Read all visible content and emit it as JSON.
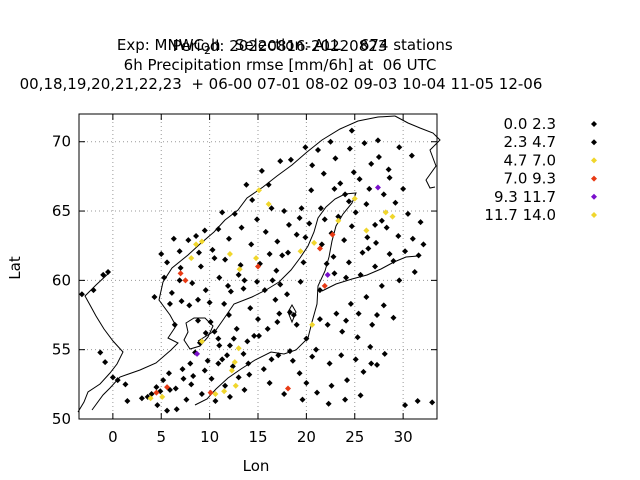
{
  "title_lines": [
    "Exp: MNWC",
    "2",
    "h   Selection: ALL    674 stations",
    "Period: 20220816-20220823",
    "6h Precipitation rmse [mm/6h] at  06 UTC",
    "00,18,19,20,21,22,23  + 06-00 07-01 08-02 09-03 10-04 11-05 12-06"
  ],
  "chart_data": {
    "type": "scatter",
    "xlabel": "Lon",
    "ylabel": "Lat",
    "xlim": [
      -3.5,
      33.5
    ],
    "ylim": [
      50,
      72
    ],
    "xticks": [
      0,
      5,
      10,
      15,
      20,
      25,
      30
    ],
    "yticks": [
      50,
      55,
      60,
      65,
      70
    ],
    "grid": true,
    "legend_position": "right",
    "series": [
      {
        "name": "0.0 2.3",
        "color": "#000000",
        "points": [
          [
            -3.2,
            59.0
          ],
          [
            -2.0,
            59.3
          ],
          [
            -1.0,
            60.4
          ],
          [
            -0.5,
            60.6
          ],
          [
            -1.3,
            54.8
          ],
          [
            -0.8,
            54.1
          ],
          [
            0.0,
            53.0
          ],
          [
            0.5,
            52.8
          ],
          [
            1.3,
            52.5
          ],
          [
            1.5,
            51.3
          ],
          [
            3.0,
            51.5
          ],
          [
            4.0,
            51.8
          ],
          [
            4.5,
            52.3
          ],
          [
            5.2,
            52.8
          ],
          [
            5.8,
            53.3
          ],
          [
            6.5,
            52.2
          ],
          [
            7.2,
            53.6
          ],
          [
            8.0,
            54.0
          ],
          [
            8.5,
            54.8
          ],
          [
            9.0,
            55.5
          ],
          [
            9.6,
            56.2
          ],
          [
            10.1,
            57.0
          ],
          [
            10.5,
            56.3
          ],
          [
            11.0,
            55.3
          ],
          [
            11.8,
            54.6
          ],
          [
            12.5,
            55.8
          ],
          [
            12.0,
            57.5
          ],
          [
            11.5,
            58.3
          ],
          [
            12.2,
            59.2
          ],
          [
            13.5,
            59.4
          ],
          [
            14.2,
            58.0
          ],
          [
            15.0,
            57.2
          ],
          [
            16.0,
            56.5
          ],
          [
            17.2,
            57.6
          ],
          [
            18.0,
            59.0
          ],
          [
            16.5,
            60.0
          ],
          [
            15.2,
            61.2
          ],
          [
            14.3,
            62.6
          ],
          [
            15.8,
            63.5
          ],
          [
            17.0,
            62.8
          ],
          [
            18.2,
            64.0
          ],
          [
            19.5,
            65.2
          ],
          [
            20.5,
            66.5
          ],
          [
            21.8,
            67.7
          ],
          [
            23.0,
            68.8
          ],
          [
            24.5,
            69.5
          ],
          [
            26.0,
            69.9
          ],
          [
            27.5,
            68.9
          ],
          [
            28.5,
            68.0
          ],
          [
            25.5,
            67.3
          ],
          [
            24.0,
            66.2
          ],
          [
            26.2,
            65.5
          ],
          [
            27.8,
            64.3
          ],
          [
            29.5,
            63.2
          ],
          [
            28.6,
            61.9
          ],
          [
            27.1,
            61.0
          ],
          [
            25.6,
            60.4
          ],
          [
            24.1,
            60.2
          ],
          [
            22.9,
            60.5
          ],
          [
            22.1,
            61.2
          ],
          [
            21.6,
            62.6
          ],
          [
            22.6,
            63.4
          ],
          [
            23.3,
            64.6
          ],
          [
            25.1,
            64.9
          ],
          [
            26.3,
            63.1
          ],
          [
            27.2,
            62.7
          ],
          [
            29.0,
            61.4
          ],
          [
            30.2,
            62.1
          ],
          [
            31.0,
            63.0
          ],
          [
            30.5,
            64.8
          ],
          [
            29.2,
            65.6
          ],
          [
            28.0,
            66.2
          ],
          [
            26.5,
            66.6
          ],
          [
            24.9,
            67.8
          ],
          [
            23.5,
            67.0
          ],
          [
            21.5,
            65.2
          ],
          [
            20.3,
            64.1
          ],
          [
            19.0,
            63.3
          ],
          [
            17.5,
            61.8
          ],
          [
            16.2,
            61.9
          ],
          [
            13.2,
            61.1
          ],
          [
            11.6,
            61.5
          ],
          [
            10.3,
            62.2
          ],
          [
            9.1,
            61.0
          ],
          [
            8.2,
            59.8
          ],
          [
            7.1,
            58.5
          ],
          [
            6.1,
            59.1
          ],
          [
            5.3,
            60.2
          ],
          [
            5.6,
            61.3
          ],
          [
            6.9,
            62.1
          ],
          [
            8.6,
            63.2
          ],
          [
            10.9,
            63.7
          ],
          [
            12.6,
            64.8
          ],
          [
            14.4,
            65.8
          ],
          [
            16.1,
            66.9
          ],
          [
            18.4,
            68.7
          ],
          [
            19.9,
            69.6
          ],
          [
            21.2,
            69.4
          ],
          [
            22.5,
            70.0
          ],
          [
            24.7,
            70.8
          ],
          [
            27.4,
            70.1
          ],
          [
            29.6,
            69.6
          ],
          [
            30.9,
            69.0
          ],
          [
            31.6,
            61.8
          ],
          [
            32.1,
            62.6
          ],
          [
            31.2,
            60.6
          ],
          [
            29.6,
            60.0
          ],
          [
            27.8,
            59.6
          ],
          [
            26.2,
            58.8
          ],
          [
            24.6,
            58.3
          ],
          [
            23.1,
            57.6
          ],
          [
            22.2,
            56.8
          ],
          [
            23.7,
            56.3
          ],
          [
            25.3,
            55.9
          ],
          [
            26.6,
            55.2
          ],
          [
            28.1,
            54.7
          ],
          [
            27.3,
            53.9
          ],
          [
            25.9,
            53.4
          ],
          [
            24.2,
            52.8
          ],
          [
            22.6,
            52.4
          ],
          [
            21.1,
            51.9
          ],
          [
            20.0,
            52.6
          ],
          [
            19.3,
            53.3
          ],
          [
            18.6,
            54.2
          ],
          [
            17.1,
            54.6
          ],
          [
            15.6,
            53.6
          ],
          [
            14.1,
            53.2
          ],
          [
            13.6,
            52.1
          ],
          [
            12.1,
            51.6
          ],
          [
            10.6,
            51.3
          ],
          [
            9.2,
            51.8
          ],
          [
            8.1,
            52.5
          ],
          [
            7.6,
            51.4
          ],
          [
            6.6,
            50.7
          ],
          [
            5.6,
            50.6
          ],
          [
            4.6,
            51.0
          ],
          [
            30.2,
            51.0
          ],
          [
            31.5,
            51.3
          ],
          [
            33.0,
            51.2
          ],
          [
            28.0,
            58.2
          ],
          [
            29.0,
            57.3
          ],
          [
            26.8,
            56.8
          ],
          [
            21.0,
            55.0
          ],
          [
            20.0,
            55.8
          ],
          [
            19.0,
            56.8
          ],
          [
            18.3,
            57.7
          ],
          [
            16.8,
            58.6
          ],
          [
            14.9,
            59.9
          ],
          [
            13.0,
            60.4
          ],
          [
            11.0,
            60.2
          ],
          [
            9.6,
            59.3
          ],
          [
            7.9,
            58.2
          ],
          [
            8.8,
            57.1
          ],
          [
            10.0,
            58.4
          ],
          [
            12.8,
            56.5
          ],
          [
            14.6,
            56.0
          ],
          [
            13.5,
            54.7
          ],
          [
            10.9,
            54.0
          ],
          [
            9.5,
            53.5
          ],
          [
            10.2,
            52.9
          ],
          [
            11.6,
            52.4
          ],
          [
            13.0,
            53.0
          ],
          [
            16.2,
            52.6
          ],
          [
            17.7,
            51.8
          ],
          [
            19.6,
            51.4
          ],
          [
            22.3,
            51.1
          ],
          [
            24.0,
            51.4
          ],
          [
            25.6,
            51.7
          ],
          [
            6.4,
            56.8
          ],
          [
            4.3,
            58.8
          ],
          [
            5.0,
            61.9
          ],
          [
            6.3,
            63.0
          ],
          [
            7.8,
            62.9
          ],
          [
            9.5,
            63.6
          ],
          [
            11.3,
            64.9
          ],
          [
            13.8,
            66.9
          ],
          [
            15.4,
            67.9
          ],
          [
            17.3,
            68.6
          ],
          [
            20.6,
            68.3
          ],
          [
            22.9,
            66.6
          ],
          [
            24.4,
            65.7
          ],
          [
            19.9,
            63.1
          ],
          [
            18.1,
            62.0
          ],
          [
            16.9,
            60.7
          ],
          [
            19.4,
            59.9
          ],
          [
            21.4,
            59.3
          ],
          [
            25.8,
            62.0
          ],
          [
            23.9,
            62.9
          ],
          [
            31.8,
            64.2
          ],
          [
            30.0,
            66.6
          ],
          [
            28.6,
            67.4
          ],
          [
            26.7,
            68.4
          ]
        ]
      },
      {
        "name": "2.3 4.7",
        "color": "#000000",
        "points": [
          [
            3.6,
            51.6
          ],
          [
            4.9,
            52.0
          ],
          [
            5.9,
            52.1
          ],
          [
            7.3,
            52.9
          ],
          [
            8.3,
            53.1
          ],
          [
            9.8,
            54.2
          ],
          [
            11.3,
            54.3
          ],
          [
            12.4,
            53.8
          ],
          [
            14.0,
            54.0
          ],
          [
            16.4,
            54.3
          ],
          [
            18.3,
            54.9
          ],
          [
            20.6,
            54.5
          ],
          [
            22.4,
            54.0
          ],
          [
            23.6,
            54.6
          ],
          [
            25.1,
            54.3
          ],
          [
            26.7,
            54.0
          ],
          [
            10.9,
            55.8
          ],
          [
            12.1,
            55.3
          ],
          [
            13.9,
            55.6
          ],
          [
            15.1,
            56.0
          ],
          [
            17.0,
            57.0
          ],
          [
            18.7,
            57.5
          ],
          [
            21.4,
            57.2
          ],
          [
            24.1,
            57.1
          ],
          [
            25.4,
            57.6
          ],
          [
            27.3,
            57.5
          ],
          [
            11.9,
            59.6
          ],
          [
            13.6,
            60.0
          ],
          [
            15.7,
            59.3
          ],
          [
            17.3,
            59.7
          ],
          [
            19.7,
            61.3
          ],
          [
            22.8,
            61.7
          ],
          [
            24.4,
            61.3
          ],
          [
            26.4,
            62.3
          ],
          [
            28.3,
            63.8
          ],
          [
            27.1,
            64.0
          ],
          [
            24.7,
            63.9
          ],
          [
            21.9,
            64.4
          ],
          [
            19.3,
            64.5
          ],
          [
            17.7,
            65.0
          ],
          [
            16.4,
            65.2
          ],
          [
            14.9,
            64.4
          ],
          [
            13.3,
            63.8
          ],
          [
            12.0,
            63.0
          ],
          [
            10.5,
            61.6
          ],
          [
            8.9,
            62.0
          ],
          [
            7.0,
            60.9
          ],
          [
            6.9,
            60.0
          ],
          [
            5.9,
            58.3
          ],
          [
            8.8,
            58.6
          ]
        ]
      },
      {
        "name": "4.7 7.0",
        "color": "#f0d62c",
        "points": [
          [
            8.1,
            61.6
          ],
          [
            12.1,
            61.9
          ],
          [
            13.1,
            60.8
          ],
          [
            15.1,
            66.5
          ],
          [
            16.1,
            65.5
          ],
          [
            9.2,
            62.8
          ],
          [
            8.6,
            62.6
          ],
          [
            14.8,
            61.6
          ],
          [
            19.4,
            62.1
          ],
          [
            20.8,
            62.7
          ],
          [
            23.3,
            64.3
          ],
          [
            25.0,
            65.9
          ],
          [
            26.2,
            63.6
          ],
          [
            28.2,
            64.9
          ],
          [
            28.9,
            64.6
          ],
          [
            20.6,
            56.8
          ],
          [
            12.6,
            54.1
          ],
          [
            12.3,
            53.5
          ],
          [
            13.0,
            55.1
          ],
          [
            10.6,
            51.8
          ],
          [
            9.2,
            55.6
          ],
          [
            11.5,
            52.0
          ],
          [
            12.7,
            52.4
          ],
          [
            3.9,
            51.5
          ],
          [
            5.1,
            51.6
          ]
        ]
      },
      {
        "name": "7.0 9.3",
        "color": "#e83a14",
        "points": [
          [
            7.0,
            60.5
          ],
          [
            7.5,
            60.0
          ],
          [
            15.0,
            61.0
          ],
          [
            18.1,
            52.2
          ],
          [
            21.4,
            62.3
          ],
          [
            22.7,
            63.3
          ],
          [
            21.9,
            59.6
          ],
          [
            5.6,
            52.3
          ],
          [
            4.5,
            51.9
          ],
          [
            10.1,
            51.9
          ]
        ]
      },
      {
        "name": "9.3 11.7",
        "color": "#7a10cc",
        "points": [
          [
            22.2,
            60.4
          ],
          [
            27.4,
            66.7
          ],
          [
            8.7,
            54.7
          ]
        ]
      },
      {
        "name": "11.7 14.0",
        "color": "#f0d62c",
        "points": []
      }
    ]
  }
}
